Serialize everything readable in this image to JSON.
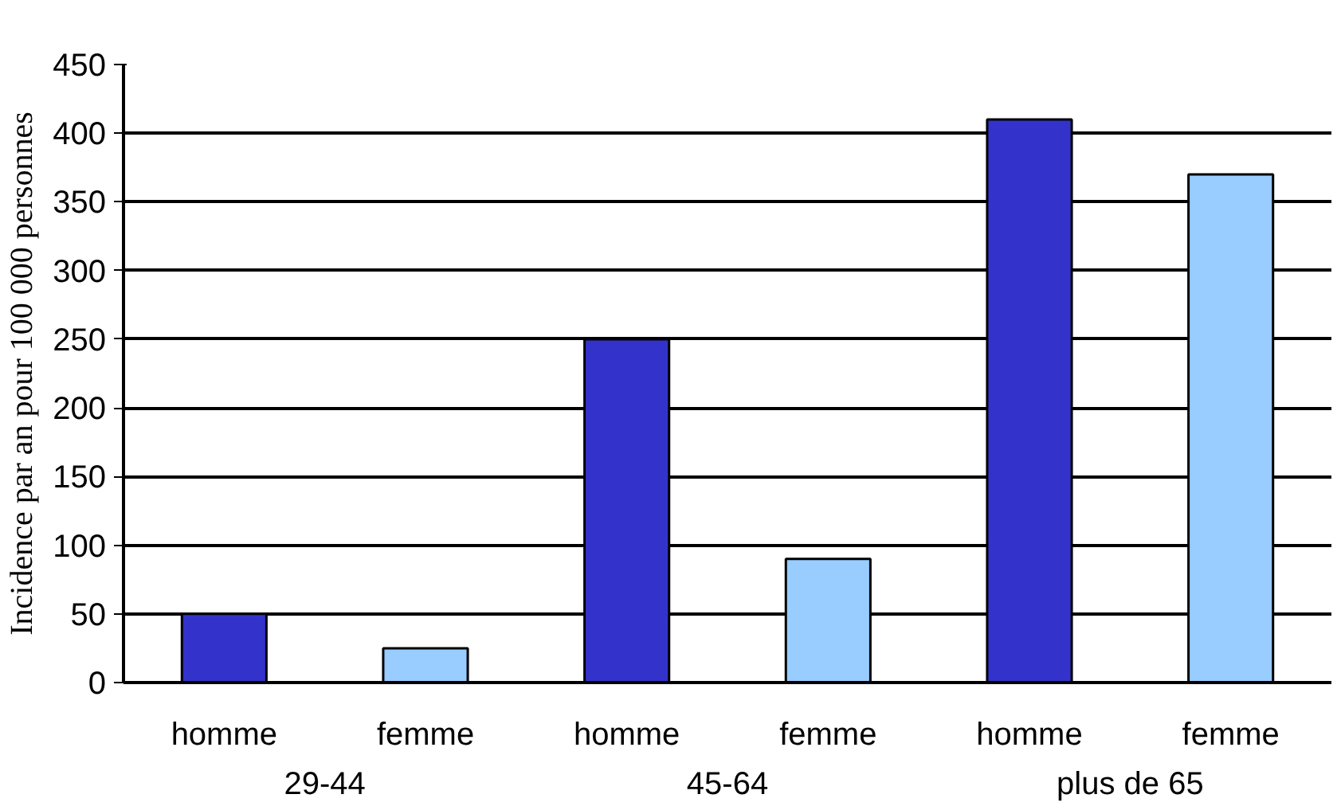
{
  "chart_data": {
    "type": "bar",
    "ylabel": "Incidence par an pour 100 000 personnes",
    "categories": [
      "homme",
      "femme",
      "homme",
      "femme",
      "homme",
      "femme"
    ],
    "annotations": [
      "29-44",
      "45-64",
      "plus de 65"
    ],
    "values": [
      50,
      25,
      250,
      90,
      410,
      370
    ],
    "colors": [
      "#3333cc",
      "#99ccff",
      "#3333cc",
      "#99ccff",
      "#3333cc",
      "#99ccff"
    ],
    "ylim": [
      0,
      450
    ],
    "yticks": [
      0,
      50,
      100,
      150,
      200,
      250,
      300,
      350,
      400,
      450
    ],
    "grid": "y"
  }
}
